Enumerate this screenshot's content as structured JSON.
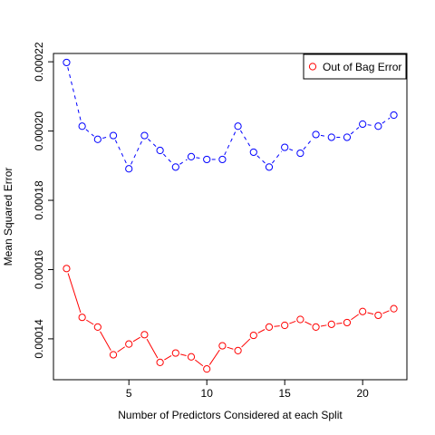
{
  "chart_data": {
    "type": "line",
    "xlabel": "Number of Predictors Considered at each Split",
    "ylabel": "Mean Squared Error",
    "xlim": [
      0.16,
      22.84
    ],
    "ylim": [
      0.0001282,
      0.0002224
    ],
    "x_ticks": [
      5,
      10,
      15,
      20
    ],
    "x_tick_labels": [
      "5",
      "10",
      "15",
      "20"
    ],
    "y_ticks": [
      0.00014,
      0.00016,
      0.00018,
      0.0002,
      0.00022
    ],
    "y_tick_labels": [
      "0.00014",
      "0.00016",
      "0.00018",
      "0.00020",
      "0.00022"
    ],
    "x": [
      1,
      2,
      3,
      4,
      5,
      6,
      7,
      8,
      9,
      10,
      11,
      12,
      13,
      14,
      15,
      16,
      17,
      18,
      19,
      20,
      21,
      22
    ],
    "series": [
      {
        "color": "#ff0000",
        "line_style": "solid",
        "marker": "open-circle",
        "values": [
          0.0001603,
          0.0001462,
          0.0001434,
          0.0001354,
          0.0001385,
          0.0001412,
          0.0001332,
          0.0001359,
          0.0001348,
          0.0001313,
          0.000138,
          0.0001366,
          0.000141,
          0.0001434,
          0.0001439,
          0.0001456,
          0.0001434,
          0.0001442,
          0.0001447,
          0.0001479,
          0.0001468,
          0.0001487
        ]
      },
      {
        "color": "#0000ff",
        "line_style": "dashed",
        "marker": "open-circle",
        "values": [
          0.0002198,
          0.0002014,
          0.0001976,
          0.0001987,
          0.0001891,
          0.0001987,
          0.0001944,
          0.0001896,
          0.0001926,
          0.0001918,
          0.0001918,
          0.0002014,
          0.0001939,
          0.0001896,
          0.0001953,
          0.0001936,
          0.000199,
          0.0001982,
          0.0001982,
          0.000202,
          0.0002014,
          0.0002046
        ]
      }
    ],
    "legend": {
      "position": "top-right",
      "entries": [
        {
          "label": "Out of Bag Error",
          "color": "#ff0000",
          "marker": "open-circle"
        }
      ]
    },
    "grid": false
  }
}
